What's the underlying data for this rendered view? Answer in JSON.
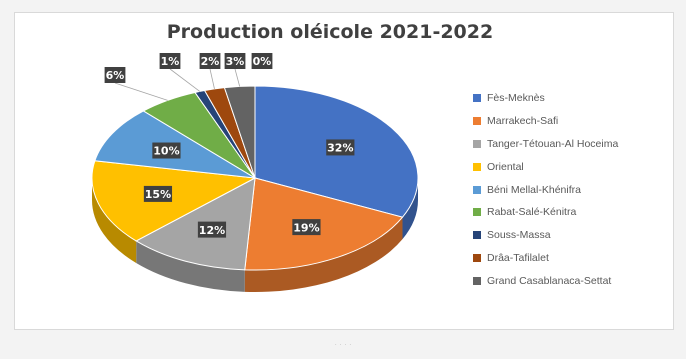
{
  "chart_data": {
    "type": "pie",
    "title": "Production oléicole 2021-2022",
    "categories": [
      "Fès-Meknès",
      "Marrakech-Safi",
      "Tanger-Tétouan-Al Hoceima",
      "Oriental",
      "Béni Mellal-Khénifra",
      "Rabat-Salé-Kénitra",
      "Souss-Massa",
      "Drâa-Tafilalet",
      "Grand Casablanaca-Settat"
    ],
    "values": [
      32,
      19,
      12,
      15,
      10,
      6,
      1,
      2,
      3
    ],
    "data_labels": [
      "32%",
      "19%",
      "12%",
      "15%",
      "10%",
      "6%",
      "1%",
      "2%",
      "3%"
    ],
    "colors": [
      "#4472c4",
      "#ed7d31",
      "#a5a5a5",
      "#ffc000",
      "#5b9bd5",
      "#70ad47",
      "#264478",
      "#9e480e",
      "#636363"
    ],
    "extra_label": "0%",
    "legend_position": "right",
    "style": "3d-pie"
  },
  "footer_text": "· · · ·"
}
